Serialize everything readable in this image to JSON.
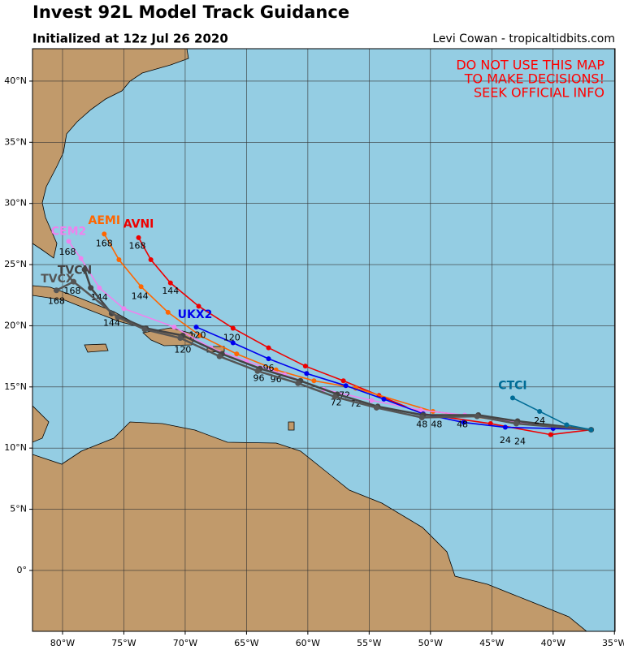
{
  "header": {
    "title": "Invest 92L Model Track Guidance",
    "subtitle": "Initialized at 12z Jul 26 2020",
    "credit": "Levi Cowan - tropicaltidbits.com"
  },
  "warning": [
    "DO NOT USE THIS MAP",
    "TO MAKE DECISIONS!",
    "SEEK OFFICIAL INFO"
  ],
  "map": {
    "xlim": [
      -82.45,
      -34.95
    ],
    "ylim": [
      -4.98,
      42.65
    ],
    "xticks": [
      {
        "value": -80,
        "label": "80°W"
      },
      {
        "value": -75,
        "label": "75°W"
      },
      {
        "value": -70,
        "label": "70°W"
      },
      {
        "value": -65,
        "label": "65°W"
      },
      {
        "value": -60,
        "label": "60°W"
      },
      {
        "value": -55,
        "label": "55°W"
      },
      {
        "value": -50,
        "label": "50°W"
      },
      {
        "value": -45,
        "label": "45°W"
      },
      {
        "value": -40,
        "label": "40°W"
      },
      {
        "value": -35,
        "label": "35°W"
      }
    ],
    "yticks": [
      {
        "value": 0,
        "label": "0°"
      },
      {
        "value": 5,
        "label": "5°N"
      },
      {
        "value": 10,
        "label": "10°N"
      },
      {
        "value": 15,
        "label": "15°N"
      },
      {
        "value": 20,
        "label": "20°N"
      },
      {
        "value": 25,
        "label": "25°N"
      },
      {
        "value": 30,
        "label": "30°N"
      },
      {
        "value": 35,
        "label": "35°N"
      },
      {
        "value": 40,
        "label": "40°N"
      }
    ],
    "grid": true,
    "tracks": [
      {
        "name": "AVNI",
        "color": "#ee0000",
        "name_lon": -73.8,
        "name_lat": 28.3,
        "lon": [
          -36.9,
          -40.2,
          -45.1,
          -50.6,
          -54.2,
          -57.1,
          -60.2,
          -63.2,
          -66.1,
          -68.9,
          -71.2,
          -72.8,
          -73.8
        ],
        "lat": [
          11.5,
          11.1,
          12.0,
          12.8,
          14.3,
          15.5,
          16.7,
          18.2,
          19.8,
          21.6,
          23.5,
          25.4,
          27.2
        ],
        "labels": [
          {
            "text": "24",
            "lon": -42.7,
            "lat": 10.5
          },
          {
            "text": "144",
            "lon": -71.2,
            "lat": 22.8
          },
          {
            "text": "168",
            "lon": -73.9,
            "lat": 26.5
          }
        ]
      },
      {
        "name": "AEMI",
        "color": "#ff6600",
        "name_lon": -76.6,
        "name_lat": 28.6,
        "lon": [
          -36.9,
          -40.0,
          -49.8,
          -56.1,
          -59.5,
          -62.6,
          -65.8,
          -68.8,
          -71.4,
          -73.6,
          -75.4,
          -76.6
        ],
        "lat": [
          11.5,
          11.7,
          13.0,
          14.9,
          15.5,
          16.4,
          17.7,
          19.2,
          21.1,
          23.2,
          25.4,
          27.5
        ],
        "labels": [
          {
            "text": "48",
            "lon": -49.5,
            "lat": 11.9
          },
          {
            "text": "72",
            "lon": -56.1,
            "lat": 13.6
          },
          {
            "text": "96",
            "lon": -62.6,
            "lat": 15.6
          },
          {
            "text": "120",
            "lon": -69.0,
            "lat": 19.2
          },
          {
            "text": "144",
            "lon": -73.7,
            "lat": 22.4
          },
          {
            "text": "168",
            "lon": -76.6,
            "lat": 26.7
          }
        ]
      },
      {
        "name": "CEM2",
        "color": "#ee82ee",
        "name_lon": -79.5,
        "name_lat": 27.7,
        "lon": [
          -36.9,
          -40.0,
          -47.2,
          -50.8,
          -54.8,
          -58.7,
          -61.9,
          -65.0,
          -67.9,
          -70.9,
          -75.0,
          -77.0,
          -78.5,
          -79.5
        ],
        "lat": [
          11.5,
          11.7,
          12.7,
          13.1,
          13.9,
          14.8,
          16.0,
          17.1,
          18.2,
          19.9,
          21.4,
          23.1,
          25.5,
          26.9
        ],
        "labels": [
          {
            "text": "144",
            "lon": -77.0,
            "lat": 22.3
          },
          {
            "text": "168",
            "lon": -79.6,
            "lat": 26.0
          }
        ]
      },
      {
        "name": "UKX2",
        "color": "#0000ee",
        "name_lon": -69.2,
        "name_lat": 20.9,
        "lon": [
          -36.9,
          -40.0,
          -43.9,
          -47.3,
          -50.6,
          -53.8,
          -56.9,
          -60.1,
          -63.2,
          -66.1,
          -69.1
        ],
        "lat": [
          11.5,
          11.6,
          11.7,
          12.1,
          12.8,
          14.0,
          15.1,
          16.1,
          17.3,
          18.6,
          19.9
        ],
        "labels": [
          {
            "text": "24",
            "lon": -43.9,
            "lat": 10.6
          },
          {
            "text": "48",
            "lon": -47.4,
            "lat": 11.9
          },
          {
            "text": "72",
            "lon": -57.0,
            "lat": 14.3
          },
          {
            "text": "96",
            "lon": -63.2,
            "lat": 16.5
          },
          {
            "text": "120",
            "lon": -66.2,
            "lat": 19.0
          }
        ]
      },
      {
        "name": "TVCN",
        "color": "#444444",
        "name_lon": -79.0,
        "name_lat": 24.5,
        "lon": [
          -36.9,
          -42.9,
          -46.1,
          -50.6,
          -54.3,
          -57.6,
          -60.6,
          -63.9,
          -67.0,
          -70.2,
          -73.2,
          -76.0,
          -77.7,
          -78.2
        ],
        "lat": [
          11.5,
          12.2,
          12.7,
          12.7,
          13.4,
          14.4,
          15.5,
          16.5,
          17.7,
          19.2,
          19.8,
          21.0,
          23.1,
          24.6
        ],
        "labels": [
          {
            "text": "48",
            "lon": -50.7,
            "lat": 11.9
          },
          {
            "text": "72",
            "lon": -57.7,
            "lat": 13.7
          },
          {
            "text": "96",
            "lon": -64.0,
            "lat": 15.7
          },
          {
            "text": "144",
            "lon": -76.0,
            "lat": 20.2
          }
        ]
      },
      {
        "name": "TVCX",
        "color": "#555555",
        "name_lon": -80.4,
        "name_lat": 23.8,
        "lon": [
          -36.9,
          -43.0,
          -46.2,
          -50.7,
          -54.4,
          -57.8,
          -60.8,
          -64.1,
          -67.2,
          -70.4,
          -73.3,
          -75.5,
          -79.1,
          -80.5
        ],
        "lat": [
          11.5,
          12.0,
          12.6,
          12.5,
          13.3,
          14.2,
          15.3,
          16.3,
          17.5,
          19.0,
          19.7,
          20.7,
          23.6,
          22.9
        ],
        "labels": [
          {
            "text": "120",
            "lon": -70.2,
            "lat": 18.0
          },
          {
            "text": "168",
            "lon": -79.2,
            "lat": 22.8
          },
          {
            "text": "168",
            "lon": -80.5,
            "lat": 22.0
          }
        ]
      },
      {
        "name": "CTCI",
        "color": "#006c96",
        "name_lon": -43.3,
        "name_lat": 15.1,
        "lon": [
          -36.9,
          -38.9,
          -41.1,
          -43.3
        ],
        "lat": [
          11.5,
          11.9,
          13.0,
          14.1
        ],
        "labels": [
          {
            "text": "24",
            "lon": -41.1,
            "lat": 12.2
          }
        ]
      }
    ]
  }
}
